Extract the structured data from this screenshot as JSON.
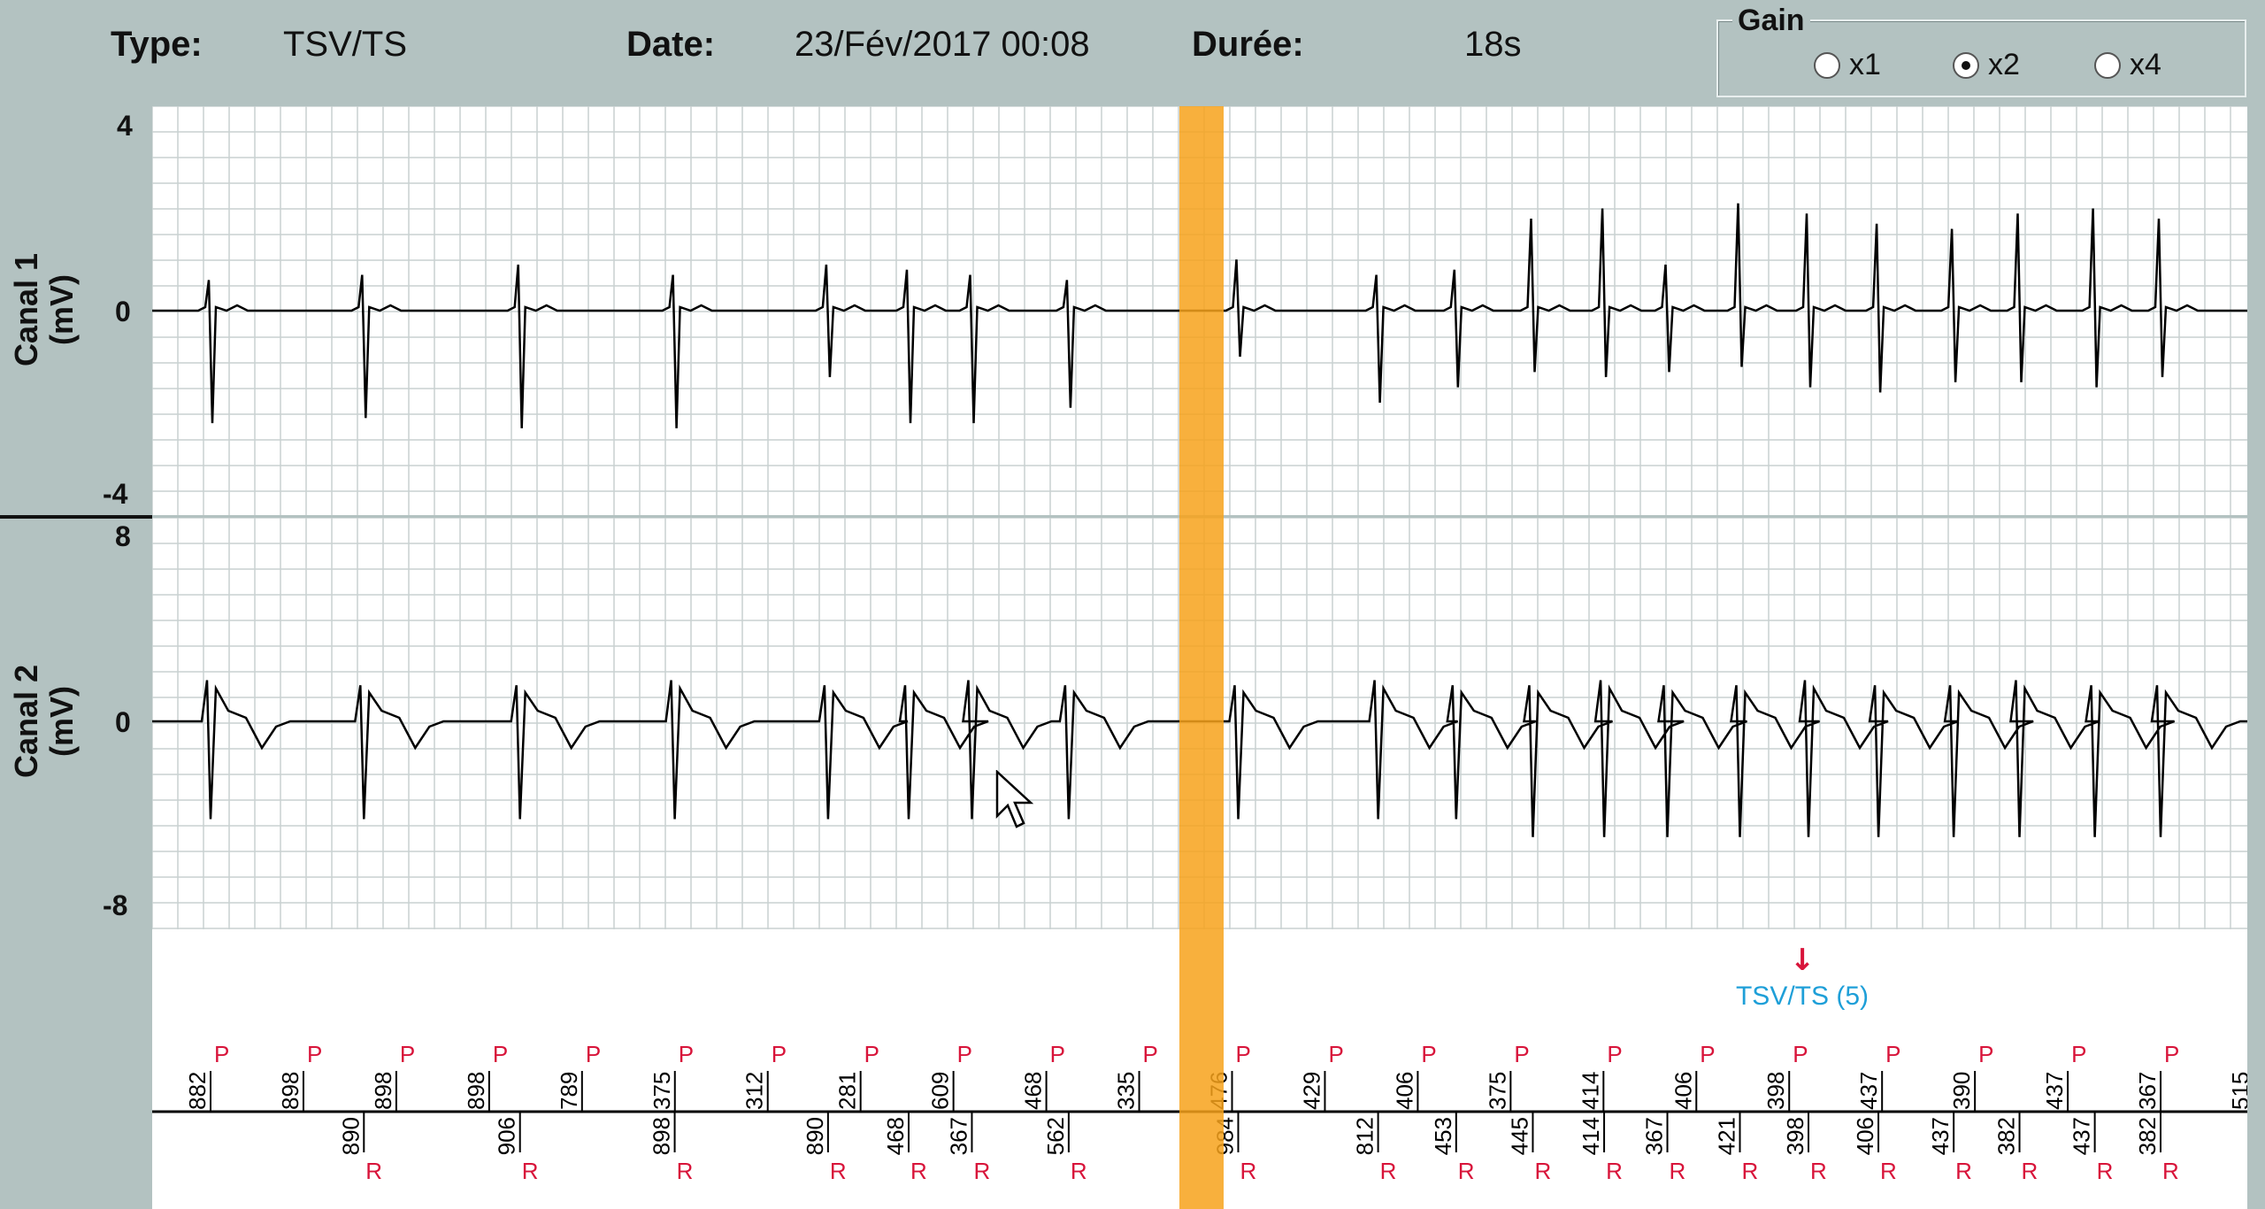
{
  "header": {
    "type_label": "Type:",
    "type_value": "TSV/TS",
    "date_label": "Date:",
    "date_value": "23/Fév/2017 00:08",
    "duration_label": "Durée:",
    "duration_value": "18s"
  },
  "gain": {
    "title": "Gain",
    "options": [
      "x1",
      "x2",
      "x4"
    ],
    "selected": "x2"
  },
  "colors": {
    "background": "#b3c2c1",
    "grid": "#c9d1d1",
    "trace": "#000000",
    "highlight": "#f7a21b",
    "marker": "#d8143a",
    "event": "#1e9fd8"
  },
  "chart_data": {
    "type": "line",
    "channels": [
      {
        "name": "Canal 1",
        "unit": "(mV)",
        "yticks": [
          "4",
          "0",
          "-4"
        ],
        "ylim": [
          -4,
          4
        ]
      },
      {
        "name": "Canal 2",
        "unit": "(mV)",
        "yticks": [
          "8",
          "0",
          "-8"
        ],
        "ylim": [
          -8,
          8
        ]
      }
    ],
    "highlight_label": "",
    "event": {
      "label": "TSV/TS (5)",
      "marker": "↓"
    },
    "pp_intervals": [
      882,
      898,
      898,
      898,
      789,
      375,
      312,
      281,
      609,
      468,
      335,
      476,
      429,
      406,
      375,
      414,
      406,
      398,
      437,
      390,
      437,
      367,
      515
    ],
    "rr_intervals": [
      890,
      906,
      898,
      890,
      468,
      367,
      562,
      984,
      812,
      453,
      445,
      414,
      367,
      421,
      398,
      406,
      437,
      382,
      437,
      382
    ],
    "p_label": "P",
    "r_label": "R"
  }
}
